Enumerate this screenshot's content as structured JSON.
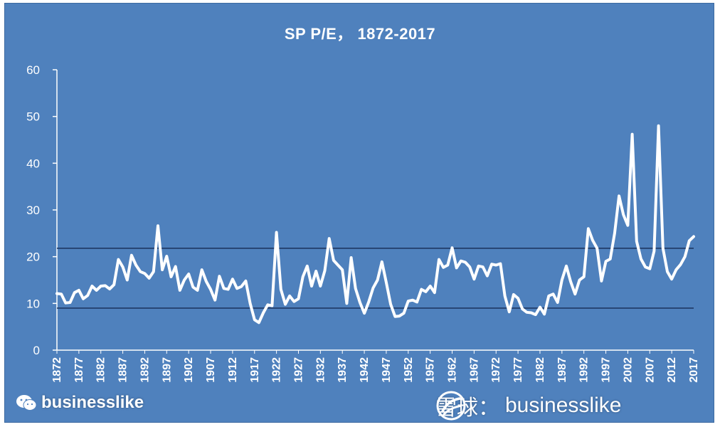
{
  "chart_data": {
    "type": "line",
    "title": "SP P/E， 1872-2017",
    "xlabel": "",
    "ylabel": "",
    "ylim": [
      0,
      60
    ],
    "yticks": [
      0,
      10,
      20,
      30,
      40,
      50,
      60
    ],
    "xlim": [
      1872,
      2017
    ],
    "xticks": [
      "1872",
      "1877",
      "1882",
      "1887",
      "1892",
      "1897",
      "1902",
      "1907",
      "1912",
      "1917",
      "1922",
      "1927",
      "1932",
      "1937",
      "1942",
      "1947",
      "1952",
      "1957",
      "1962",
      "1967",
      "1972",
      "1977",
      "1982",
      "1987",
      "1992",
      "1997",
      "2002",
      "2007",
      "2012",
      "2017"
    ],
    "reference_lines": [
      21.8,
      9.0
    ],
    "colors": {
      "background": "#4f81bd",
      "line": "#ffffff",
      "reference": "#1f3864",
      "text": "#ffffff"
    },
    "series": [
      {
        "name": "",
        "points": [
          [
            1872,
            12.1
          ],
          [
            1873,
            12.0
          ],
          [
            1874,
            10.1
          ],
          [
            1875,
            10.2
          ],
          [
            1876,
            12.3
          ],
          [
            1877,
            12.8
          ],
          [
            1878,
            11.0
          ],
          [
            1879,
            11.7
          ],
          [
            1880,
            13.7
          ],
          [
            1881,
            12.8
          ],
          [
            1882,
            13.7
          ],
          [
            1883,
            13.8
          ],
          [
            1884,
            13.1
          ],
          [
            1885,
            14.0
          ],
          [
            1886,
            19.4
          ],
          [
            1887,
            17.8
          ],
          [
            1888,
            15.0
          ],
          [
            1889,
            20.3
          ],
          [
            1890,
            18.2
          ],
          [
            1891,
            16.8
          ],
          [
            1892,
            16.4
          ],
          [
            1893,
            15.4
          ],
          [
            1894,
            16.8
          ],
          [
            1895,
            26.6
          ],
          [
            1896,
            17.2
          ],
          [
            1897,
            20.1
          ],
          [
            1898,
            15.7
          ],
          [
            1899,
            17.9
          ],
          [
            1900,
            12.8
          ],
          [
            1901,
            15.0
          ],
          [
            1902,
            16.3
          ],
          [
            1903,
            13.5
          ],
          [
            1904,
            12.8
          ],
          [
            1905,
            17.2
          ],
          [
            1906,
            14.7
          ],
          [
            1907,
            13.0
          ],
          [
            1908,
            10.7
          ],
          [
            1909,
            15.8
          ],
          [
            1910,
            13.2
          ],
          [
            1911,
            13.0
          ],
          [
            1912,
            15.2
          ],
          [
            1913,
            13.2
          ],
          [
            1914,
            13.6
          ],
          [
            1915,
            14.8
          ],
          [
            1916,
            10.0
          ],
          [
            1917,
            6.5
          ],
          [
            1918,
            5.9
          ],
          [
            1919,
            8.0
          ],
          [
            1920,
            9.7
          ],
          [
            1921,
            9.5
          ],
          [
            1922,
            25.2
          ],
          [
            1923,
            13.0
          ],
          [
            1924,
            9.8
          ],
          [
            1925,
            11.6
          ],
          [
            1926,
            10.4
          ],
          [
            1927,
            11.0
          ],
          [
            1928,
            15.7
          ],
          [
            1929,
            18.0
          ],
          [
            1930,
            13.7
          ],
          [
            1931,
            16.9
          ],
          [
            1932,
            13.7
          ],
          [
            1933,
            17.0
          ],
          [
            1934,
            23.9
          ],
          [
            1935,
            19.2
          ],
          [
            1936,
            18.2
          ],
          [
            1937,
            17.2
          ],
          [
            1938,
            10.0
          ],
          [
            1939,
            19.8
          ],
          [
            1940,
            13.2
          ],
          [
            1941,
            10.2
          ],
          [
            1942,
            7.9
          ],
          [
            1943,
            10.3
          ],
          [
            1944,
            13.3
          ],
          [
            1945,
            15.0
          ],
          [
            1946,
            18.9
          ],
          [
            1947,
            14.5
          ],
          [
            1948,
            9.8
          ],
          [
            1949,
            7.2
          ],
          [
            1950,
            7.3
          ],
          [
            1951,
            7.9
          ],
          [
            1952,
            10.5
          ],
          [
            1953,
            10.7
          ],
          [
            1954,
            10.3
          ],
          [
            1955,
            13.0
          ],
          [
            1956,
            12.5
          ],
          [
            1957,
            13.7
          ],
          [
            1958,
            12.3
          ],
          [
            1959,
            19.4
          ],
          [
            1960,
            17.7
          ],
          [
            1961,
            18.2
          ],
          [
            1962,
            21.9
          ],
          [
            1963,
            17.6
          ],
          [
            1964,
            19.1
          ],
          [
            1965,
            18.8
          ],
          [
            1966,
            17.8
          ],
          [
            1967,
            15.2
          ],
          [
            1968,
            18.0
          ],
          [
            1969,
            17.8
          ],
          [
            1970,
            15.9
          ],
          [
            1971,
            18.4
          ],
          [
            1972,
            18.2
          ],
          [
            1973,
            18.5
          ],
          [
            1974,
            11.6
          ],
          [
            1975,
            8.2
          ],
          [
            1976,
            11.9
          ],
          [
            1977,
            11.1
          ],
          [
            1978,
            8.8
          ],
          [
            1979,
            8.1
          ],
          [
            1980,
            8.0
          ],
          [
            1981,
            7.6
          ],
          [
            1982,
            9.2
          ],
          [
            1983,
            7.7
          ],
          [
            1984,
            11.6
          ],
          [
            1985,
            12.0
          ],
          [
            1986,
            10.2
          ],
          [
            1987,
            15.0
          ],
          [
            1988,
            18.0
          ],
          [
            1989,
            14.6
          ],
          [
            1990,
            12.0
          ],
          [
            1991,
            15.0
          ],
          [
            1992,
            15.7
          ],
          [
            1993,
            26.0
          ],
          [
            1994,
            23.5
          ],
          [
            1995,
            21.8
          ],
          [
            1996,
            14.8
          ],
          [
            1997,
            19.0
          ],
          [
            1998,
            19.5
          ],
          [
            1999,
            25.0
          ],
          [
            2000,
            33.0
          ],
          [
            2001,
            29.0
          ],
          [
            2002,
            26.7
          ],
          [
            2003,
            46.2
          ],
          [
            2004,
            23.3
          ],
          [
            2005,
            19.5
          ],
          [
            2006,
            17.8
          ],
          [
            2007,
            17.4
          ],
          [
            2008,
            21.2
          ],
          [
            2009,
            48.0
          ],
          [
            2010,
            21.8
          ],
          [
            2011,
            16.8
          ],
          [
            2012,
            15.2
          ],
          [
            2013,
            17.2
          ],
          [
            2014,
            18.3
          ],
          [
            2015,
            20.0
          ],
          [
            2016,
            23.4
          ],
          [
            2017,
            24.3
          ]
        ]
      }
    ]
  },
  "watermarks": {
    "left_text": "businesslike",
    "left_icon": "wechat-icon",
    "right_cn": "雪球：",
    "right_text": "businesslike",
    "right_icon": "snowball-icon"
  }
}
